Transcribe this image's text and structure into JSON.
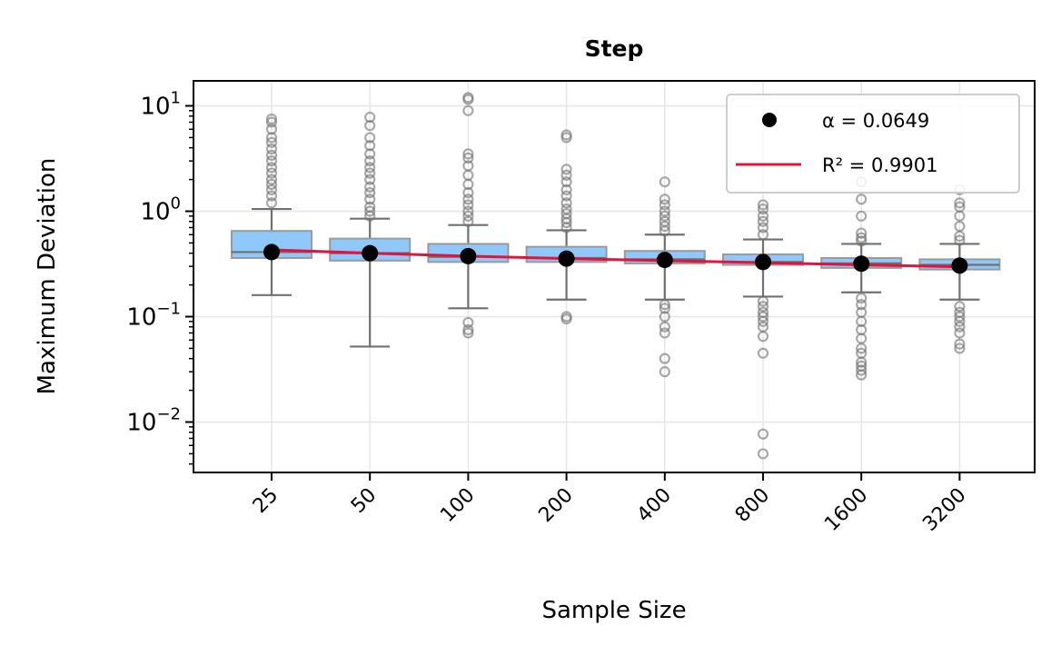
{
  "chart_data": {
    "type": "box",
    "title": "Step",
    "xlabel": "Sample Size",
    "ylabel": "Maximum Deviation",
    "yscale": "log",
    "ylim": [
      0.0032,
      17
    ],
    "yticks": [
      {
        "value": 0.01,
        "base": "10",
        "exp": "−2"
      },
      {
        "value": 0.1,
        "base": "10",
        "exp": "−1"
      },
      {
        "value": 1,
        "base": "10",
        "exp": "0"
      },
      {
        "value": 10,
        "base": "10",
        "exp": "1"
      }
    ],
    "grid": true,
    "legend_position": "top-right",
    "colors": {
      "box_fill": "#8fc8fb",
      "box_edge": "#9a9a9a",
      "whisker": "#707070",
      "median_dot": "#000000",
      "fit_line": "#e0143c",
      "grid": "#e6e6e6"
    },
    "categories": [
      "25",
      "50",
      "100",
      "200",
      "400",
      "800",
      "1600",
      "3200"
    ],
    "boxes": [
      {
        "q1": 0.36,
        "median": 0.41,
        "q3": 0.65,
        "whisker_low": 0.16,
        "whisker_high": 1.05,
        "outliers": [
          1.2,
          1.4,
          1.6,
          1.8,
          2.0,
          2.3,
          2.6,
          3.0,
          3.4,
          3.9,
          4.5,
          5.0,
          6.0,
          7.0,
          7.5
        ]
      },
      {
        "q1": 0.34,
        "median": 0.4,
        "q3": 0.55,
        "whisker_low": 0.052,
        "whisker_high": 0.85,
        "outliers": [
          0.9,
          1.0,
          1.1,
          1.3,
          1.5,
          1.7,
          2.0,
          2.3,
          2.6,
          3.0,
          3.5,
          4.2,
          5.0,
          6.5,
          7.8
        ]
      },
      {
        "q1": 0.33,
        "median": 0.37,
        "q3": 0.49,
        "whisker_low": 0.12,
        "whisker_high": 0.74,
        "outliers": [
          0.07,
          0.075,
          0.088,
          0.8,
          0.9,
          1.0,
          1.15,
          1.3,
          1.5,
          1.8,
          2.2,
          2.7,
          3.2,
          3.5,
          9.0,
          11.5,
          12.0
        ]
      },
      {
        "q1": 0.33,
        "median": 0.36,
        "q3": 0.46,
        "whisker_low": 0.145,
        "whisker_high": 0.66,
        "outliers": [
          0.095,
          0.1,
          0.7,
          0.78,
          0.85,
          0.95,
          1.05,
          1.2,
          1.4,
          1.6,
          1.9,
          2.2,
          2.5,
          5.0,
          5.3
        ]
      },
      {
        "q1": 0.32,
        "median": 0.35,
        "q3": 0.42,
        "whisker_low": 0.145,
        "whisker_high": 0.6,
        "outliers": [
          0.03,
          0.04,
          0.07,
          0.08,
          0.1,
          0.12,
          0.13,
          0.65,
          0.72,
          0.8,
          0.9,
          1.0,
          1.15,
          1.3,
          1.9
        ]
      },
      {
        "q1": 0.31,
        "median": 0.33,
        "q3": 0.39,
        "whisker_low": 0.155,
        "whisker_high": 0.54,
        "outliers": [
          0.005,
          0.0077,
          0.045,
          0.065,
          0.08,
          0.09,
          0.1,
          0.11,
          0.125,
          0.14,
          0.6,
          0.7,
          0.8,
          0.9,
          1.05,
          1.15
        ]
      },
      {
        "q1": 0.29,
        "median": 0.32,
        "q3": 0.36,
        "whisker_low": 0.17,
        "whisker_high": 0.49,
        "outliers": [
          0.028,
          0.031,
          0.034,
          0.037,
          0.045,
          0.05,
          0.062,
          0.075,
          0.09,
          0.11,
          0.13,
          0.15,
          0.52,
          0.56,
          0.62,
          0.9,
          1.3,
          1.9
        ]
      },
      {
        "q1": 0.28,
        "median": 0.31,
        "q3": 0.35,
        "whisker_low": 0.145,
        "whisker_high": 0.49,
        "outliers": [
          0.05,
          0.055,
          0.07,
          0.08,
          0.09,
          0.1,
          0.11,
          0.125,
          0.53,
          0.58,
          0.72,
          0.9,
          1.1,
          1.2,
          1.6
        ]
      }
    ],
    "median_points": [
      0.41,
      0.4,
      0.375,
      0.355,
      0.345,
      0.33,
      0.318,
      0.305
    ],
    "fit_line": [
      0.43,
      0.4,
      0.375,
      0.355,
      0.34,
      0.325,
      0.31,
      0.297
    ],
    "legend": [
      {
        "marker": "dot",
        "label": "α = 0.0649"
      },
      {
        "marker": "line",
        "label": "R² = 0.9901"
      }
    ]
  }
}
